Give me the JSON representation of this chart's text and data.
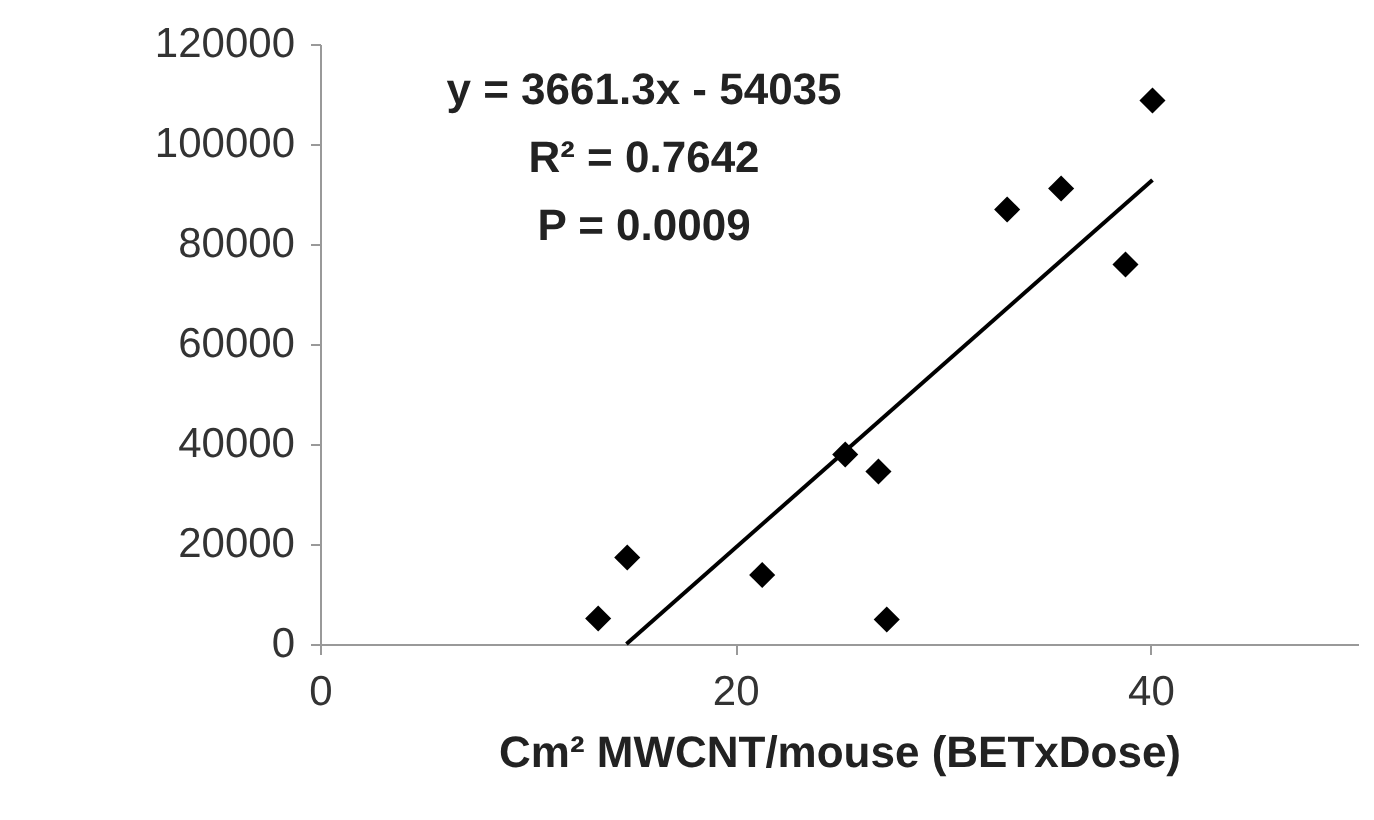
{
  "chart_data": {
    "type": "scatter",
    "xlabel": "Cm² MWCNT/mouse (BETxDose)",
    "annotations": [
      "y = 3661.3x - 54035",
      "R² = 0.7642",
      "P = 0.0009"
    ],
    "xlim": [
      0,
      50
    ],
    "xticks": [
      0,
      20,
      40
    ],
    "ylim": [
      0,
      120000
    ],
    "yticks": [
      0,
      20000,
      40000,
      60000,
      80000,
      100000,
      120000
    ],
    "grid": false,
    "marker": "diamond",
    "series": [
      {
        "color": "#000000",
        "x": [
          13.4,
          14.8,
          21.3,
          25.3,
          26.9,
          27.3,
          33.1,
          35.7,
          38.8,
          40.1
        ],
        "values": [
          5100,
          17300,
          13800,
          37900,
          34500,
          4900,
          86900,
          91100,
          75900,
          108700
        ]
      },
      {
        "type": "line",
        "marker": "none",
        "color": "#000000",
        "x": [
          14.76,
          40.1
        ],
        "values": [
          0,
          92800
        ]
      }
    ]
  }
}
